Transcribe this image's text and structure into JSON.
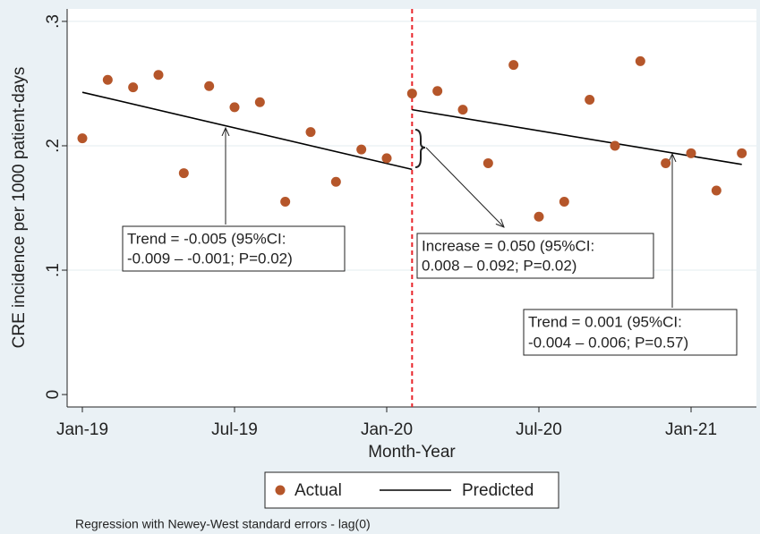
{
  "chart_data": {
    "type": "scatter",
    "x_label": "Month-Year",
    "y_label": "CRE incidence per 1000 patient-days",
    "x": [
      "2019-01",
      "2019-02",
      "2019-03",
      "2019-04",
      "2019-05",
      "2019-06",
      "2019-07",
      "2019-08",
      "2019-09",
      "2019-10",
      "2019-11",
      "2019-12",
      "2020-01",
      "2020-02",
      "2020-03",
      "2020-04",
      "2020-05",
      "2020-06",
      "2020-07",
      "2020-08",
      "2020-09",
      "2020-10",
      "2020-11",
      "2020-12",
      "2021-01",
      "2021-02",
      "2021-03"
    ],
    "series": [
      {
        "name": "Actual",
        "color": "#b5562a",
        "values": [
          0.206,
          0.253,
          0.247,
          0.257,
          0.178,
          0.248,
          0.231,
          0.235,
          0.155,
          0.211,
          0.171,
          0.197,
          0.19,
          0.242,
          0.244,
          0.229,
          0.186,
          0.265,
          0.143,
          0.155,
          0.237,
          0.2,
          0.268,
          0.186,
          0.194,
          0.164,
          0.194
        ]
      }
    ],
    "predicted": {
      "name": "Predicted",
      "color": "#000000",
      "segments": [
        {
          "x": [
            "2019-01",
            "2020-02"
          ],
          "values": [
            0.243,
            0.181
          ]
        },
        {
          "x": [
            "2020-02",
            "2021-03"
          ],
          "values": [
            0.229,
            0.185
          ]
        }
      ]
    },
    "intervention": {
      "x": "2020-02",
      "color": "#e8242a"
    },
    "ylim": [
      -0.01,
      0.31
    ],
    "yticks": [
      0,
      {
        "value": 0.1,
        "label": ".1"
      },
      {
        "value": 0.2,
        "label": ".2"
      },
      {
        "value": 0.3,
        "label": ".3"
      }
    ],
    "xticks": [
      {
        "value": "2019-01",
        "label": "Jan-19"
      },
      {
        "value": "2019-07",
        "label": "Jul-19"
      },
      {
        "value": "2020-01",
        "label": "Jan-20"
      },
      {
        "value": "2020-07",
        "label": "Jul-20"
      },
      {
        "value": "2021-01",
        "label": "Jan-21"
      }
    ],
    "grid": true,
    "annotations": [
      {
        "lines": [
          "Trend = -0.005 (95%CI:",
          "-0.009 – -0.001; P=0.02)"
        ]
      },
      {
        "lines": [
          "Increase = 0.050 (95%CI:",
          "0.008 – 0.092; P=0.02)"
        ]
      },
      {
        "lines": [
          "Trend = 0.001 (95%CI:",
          "-0.004 – 0.006; P=0.57)"
        ]
      }
    ],
    "note": "Regression with Newey-West standard errors - lag(0)"
  }
}
